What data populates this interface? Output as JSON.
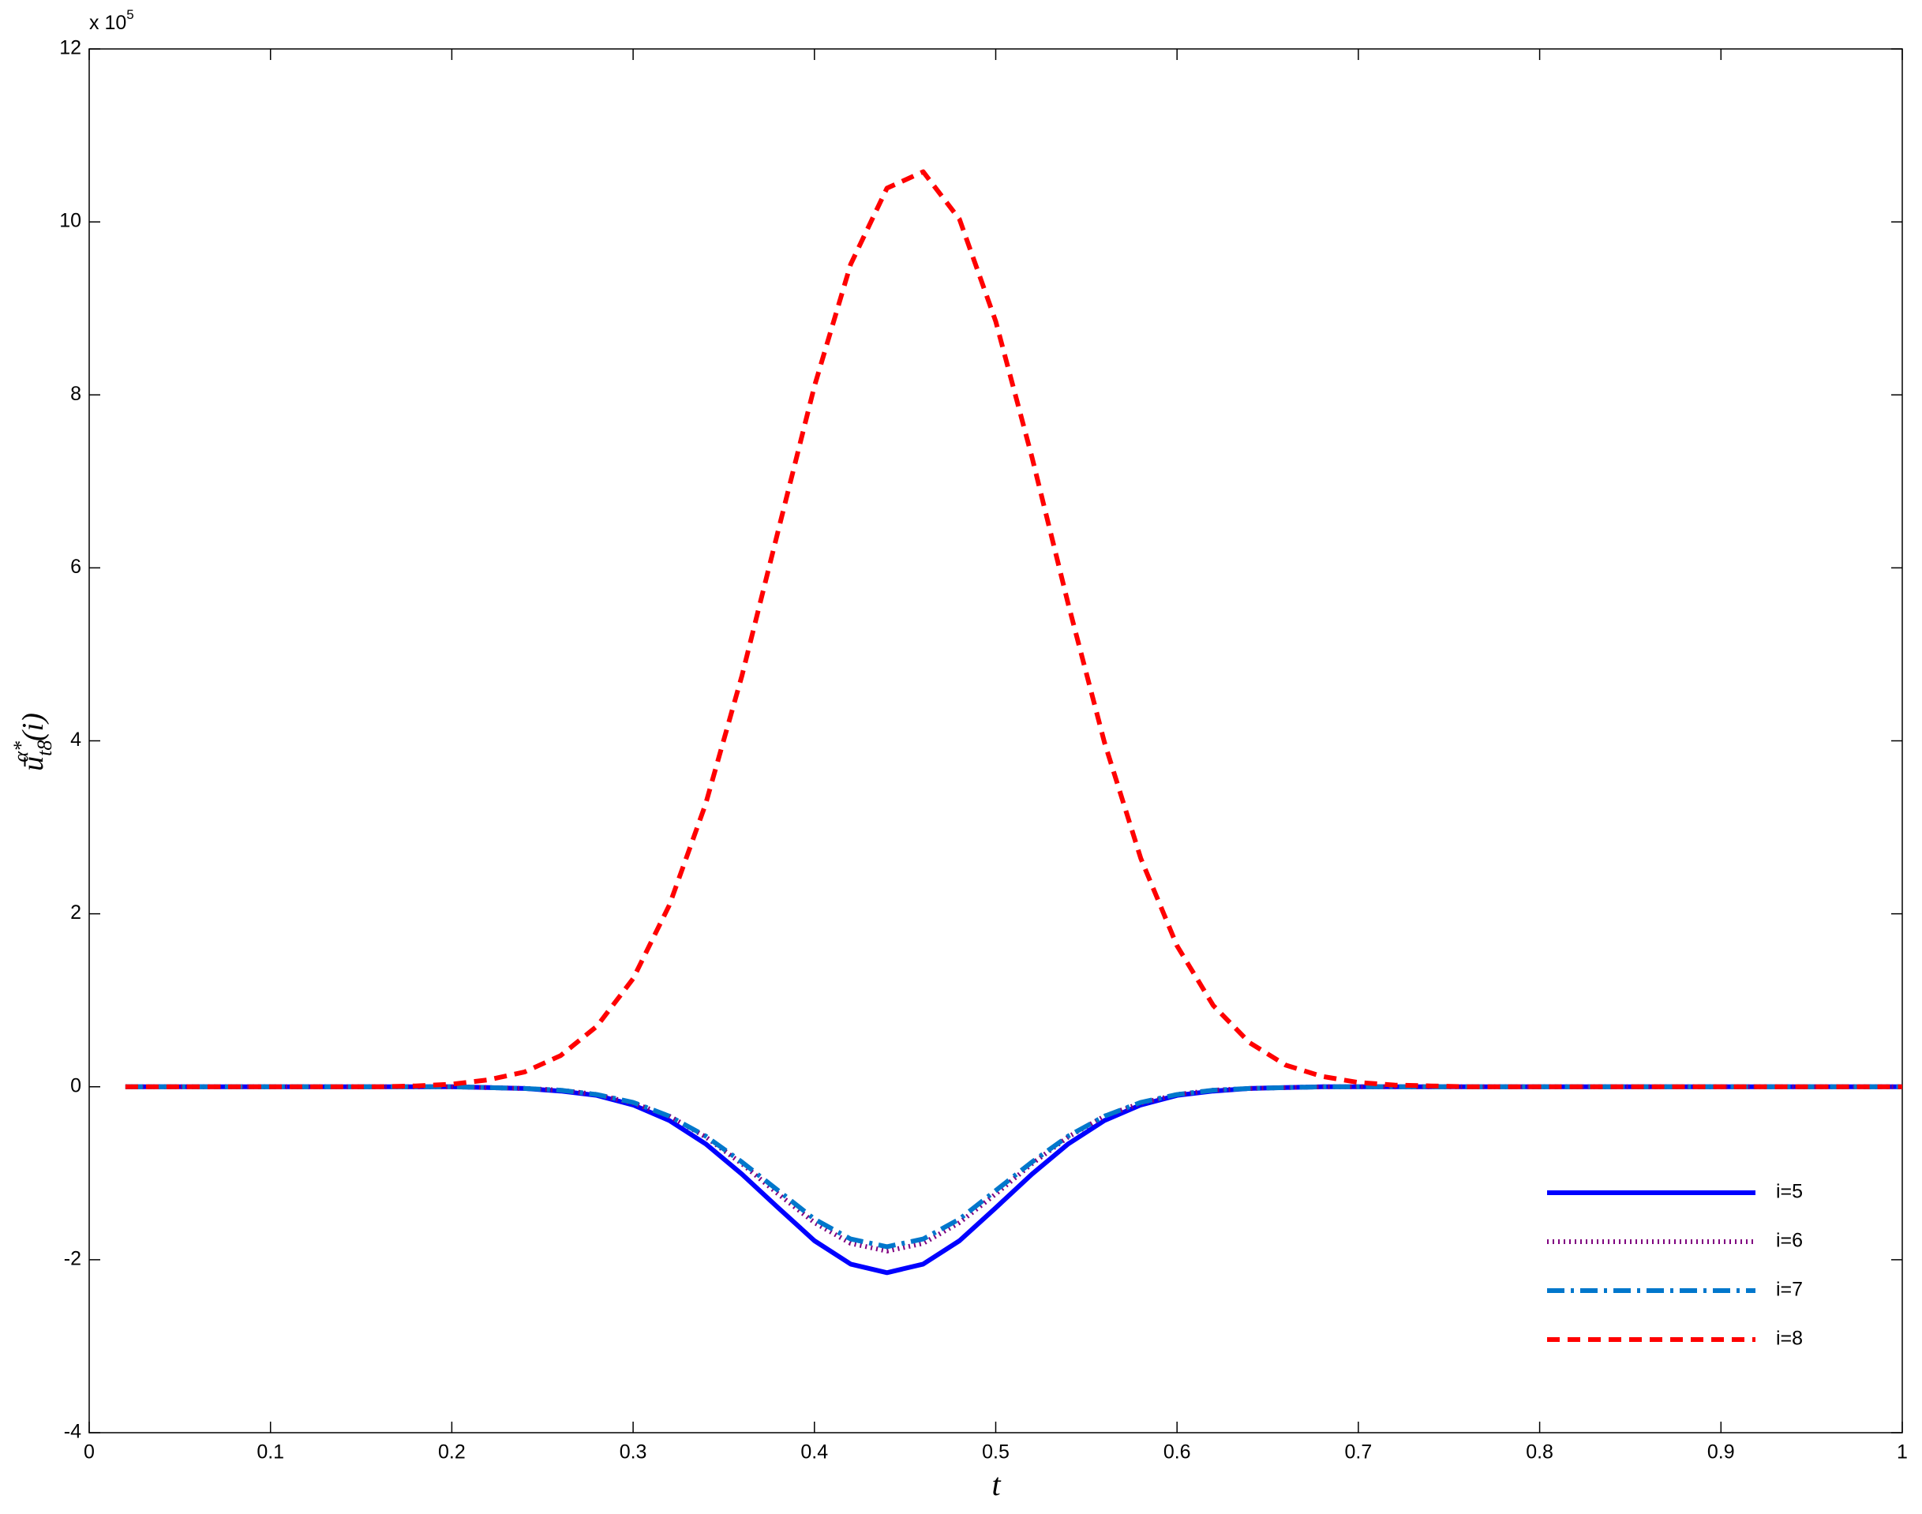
{
  "chart_data": {
    "type": "line",
    "xlabel": "t",
    "ylabel": {
      "base": "ū",
      "sup": "α*",
      "sub": "t8",
      "tail": "(i)"
    },
    "multiplier": {
      "text": "x 10",
      "exponent": "5"
    },
    "x": [
      0.02,
      0.04,
      0.06,
      0.08,
      0.1,
      0.12,
      0.14,
      0.16,
      0.18,
      0.2,
      0.22,
      0.24,
      0.26,
      0.28,
      0.3,
      0.32,
      0.34,
      0.36,
      0.38,
      0.4,
      0.42,
      0.44,
      0.46,
      0.48,
      0.5,
      0.52,
      0.54,
      0.56,
      0.58,
      0.6,
      0.62,
      0.64,
      0.66,
      0.68,
      0.7,
      0.72,
      0.74,
      0.76,
      0.78,
      0.8,
      0.82,
      0.84,
      0.86,
      0.88,
      0.9,
      0.92,
      0.94,
      0.96,
      0.98,
      1.0
    ],
    "series": [
      {
        "name": "i=5",
        "color": "#0000ff",
        "dash": "solid",
        "values": [
          0,
          0,
          0,
          0,
          0,
          0,
          0,
          0,
          0,
          0,
          -0.01,
          -0.02,
          -0.05,
          -0.1,
          -0.21,
          -0.39,
          -0.66,
          -1.01,
          -1.4,
          -1.78,
          -2.05,
          -2.15,
          -2.05,
          -1.78,
          -1.4,
          -1.01,
          -0.66,
          -0.39,
          -0.21,
          -0.1,
          -0.05,
          -0.02,
          -0.01,
          0,
          0,
          0,
          0,
          0,
          0,
          0,
          0,
          0,
          0,
          0,
          0,
          0,
          0,
          0,
          0,
          0
        ]
      },
      {
        "name": "i=6",
        "color": "#800080",
        "dash": "dotted",
        "values": [
          0,
          0,
          0,
          0,
          0,
          0,
          0,
          0,
          0,
          0,
          -0.01,
          -0.02,
          -0.04,
          -0.09,
          -0.19,
          -0.34,
          -0.58,
          -0.89,
          -1.24,
          -1.57,
          -1.81,
          -1.9,
          -1.81,
          -1.57,
          -1.24,
          -0.89,
          -0.58,
          -0.34,
          -0.19,
          -0.09,
          -0.04,
          -0.02,
          -0.01,
          0,
          0,
          0,
          0,
          0,
          0,
          0,
          0,
          0,
          0,
          0,
          0,
          0,
          0,
          0,
          0,
          0
        ]
      },
      {
        "name": "i=7",
        "color": "#0077cc",
        "dash": "dashdot",
        "values": [
          0,
          0,
          0,
          0,
          0,
          0,
          0,
          0,
          0,
          0,
          -0.01,
          -0.02,
          -0.04,
          -0.09,
          -0.18,
          -0.34,
          -0.57,
          -0.87,
          -1.2,
          -1.53,
          -1.76,
          -1.85,
          -1.76,
          -1.53,
          -1.2,
          -0.87,
          -0.57,
          -0.34,
          -0.18,
          -0.09,
          -0.04,
          -0.02,
          -0.01,
          0,
          0,
          0,
          0,
          0,
          0,
          0,
          0,
          0,
          0,
          0,
          0,
          0,
          0,
          0,
          0,
          0
        ]
      },
      {
        "name": "i=8",
        "color": "#ff0000",
        "dash": "dashed",
        "values": [
          0,
          0,
          0,
          0,
          0,
          0,
          0,
          0,
          0.01,
          0.03,
          0.08,
          0.17,
          0.36,
          0.7,
          1.25,
          2.1,
          3.27,
          4.75,
          6.43,
          8.1,
          9.51,
          10.39,
          10.58,
          10.03,
          8.85,
          7.28,
          5.58,
          3.98,
          2.64,
          1.63,
          0.94,
          0.51,
          0.25,
          0.12,
          0.05,
          0.02,
          0.01,
          0,
          0,
          0,
          0,
          0,
          0,
          0,
          0,
          0,
          0,
          0,
          0,
          0
        ]
      }
    ],
    "xlim": [
      0,
      1
    ],
    "xticks": [
      0,
      0.1,
      0.2,
      0.3,
      0.4,
      0.5,
      0.6,
      0.7,
      0.8,
      0.9,
      1
    ],
    "ylim": [
      -4,
      12
    ],
    "yticks": [
      -4,
      -2,
      0,
      2,
      4,
      6,
      8,
      10,
      12
    ],
    "legend": "lower right",
    "grid": false
  }
}
